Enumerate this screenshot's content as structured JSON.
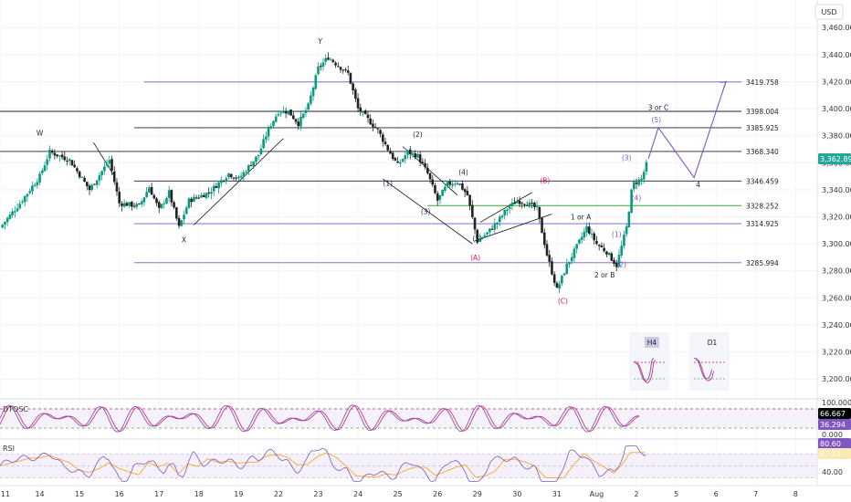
{
  "currency": "USD",
  "colors": {
    "up": "#089981",
    "down": "#222222",
    "purple": "#7E57C2",
    "navy": "#1f1f3a",
    "green": "#4CAF50",
    "red": "#d81b60",
    "teal": "#26a69a",
    "rsi": "#7E57C2",
    "rsi_ma": "#F9A825",
    "stoch_k": "#7E57C2",
    "stoch_d": "#d81b60"
  },
  "chart_data": {
    "type": "candlestick",
    "yaxis": {
      "min": 3190,
      "max": 3475,
      "ticks": [
        "3,460.000",
        "3,440.000",
        "3,420.000",
        "3,400.000",
        "3,380.000",
        "3,360.000",
        "3,340.000",
        "3,320.000",
        "3,300.000",
        "3,280.000",
        "3,260.000",
        "3,240.000",
        "3,220.000",
        "3,200.000"
      ],
      "tick_values": [
        3460,
        3440,
        3420,
        3400,
        3380,
        3360,
        3340,
        3320,
        3300,
        3280,
        3260,
        3240,
        3220,
        3200
      ]
    },
    "xaxis": {
      "labels": [
        "11",
        "14",
        "15",
        "16",
        "17",
        "18",
        "19",
        "22",
        "23",
        "24",
        "25",
        "26",
        "29",
        "30",
        "31",
        "Aug",
        "2",
        "5",
        "6",
        "7",
        "8"
      ],
      "positions": [
        0,
        4,
        8,
        12,
        16,
        20,
        24,
        28,
        32,
        36,
        40,
        44,
        48,
        52,
        56,
        60,
        64,
        68,
        72,
        76,
        80
      ]
    },
    "price_path": [
      [
        0,
        3312
      ],
      [
        2,
        3330
      ],
      [
        4,
        3350
      ],
      [
        5,
        3368
      ],
      [
        7,
        3362
      ],
      [
        9,
        3340
      ],
      [
        11,
        3362
      ],
      [
        12,
        3330
      ],
      [
        14,
        3328
      ],
      [
        15,
        3342
      ],
      [
        16,
        3325
      ],
      [
        17,
        3338
      ],
      [
        18,
        3312
      ],
      [
        19,
        3332
      ],
      [
        21,
        3338
      ],
      [
        23,
        3352
      ],
      [
        24,
        3348
      ],
      [
        26,
        3366
      ],
      [
        27,
        3385
      ],
      [
        28,
        3398
      ],
      [
        29,
        3398
      ],
      [
        30,
        3389
      ],
      [
        31,
        3402
      ],
      [
        32,
        3430
      ],
      [
        33,
        3438
      ],
      [
        34,
        3432
      ],
      [
        35,
        3426
      ],
      [
        36,
        3400
      ],
      [
        37,
        3392
      ],
      [
        38,
        3384
      ],
      [
        39,
        3370
      ],
      [
        40,
        3358
      ],
      [
        41,
        3368
      ],
      [
        42,
        3365
      ],
      [
        43,
        3352
      ],
      [
        44,
        3332
      ],
      [
        45,
        3344
      ],
      [
        46,
        3346
      ],
      [
        47,
        3336
      ],
      [
        48,
        3302
      ],
      [
        49,
        3308
      ],
      [
        50,
        3316
      ],
      [
        51,
        3326
      ],
      [
        52,
        3332
      ],
      [
        53,
        3330
      ],
      [
        54,
        3326
      ],
      [
        55,
        3292
      ],
      [
        56,
        3266
      ],
      [
        57,
        3284
      ],
      [
        58,
        3298
      ],
      [
        59,
        3312
      ],
      [
        60,
        3300
      ],
      [
        61,
        3294
      ],
      [
        62,
        3284
      ],
      [
        63,
        3312
      ],
      [
        63.6,
        3344
      ],
      [
        64.5,
        3348
      ],
      [
        65.2,
        3362.895
      ]
    ],
    "last_price": "3,362.895",
    "levels": [
      {
        "value": 3419.758,
        "label": "3419.758",
        "color": "purple",
        "start": 14.5
      },
      {
        "value": 3398.004,
        "label": "3398.004",
        "color": "navy",
        "start": 0
      },
      {
        "value": 3385.925,
        "label": "3385.925",
        "color": "navy",
        "start": 13.5
      },
      {
        "value": 3368.34,
        "label": "3368.340",
        "color": "navy",
        "start": 0
      },
      {
        "value": 3346.459,
        "label": "3346.459",
        "color": "navy",
        "start": 13.5
      },
      {
        "value": 3328.252,
        "label": "3328.252",
        "color": "green",
        "start": 43
      },
      {
        "value": 3314.925,
        "label": "3314.925",
        "color": "purple",
        "start": 13.5
      },
      {
        "value": 3285.994,
        "label": "3285.994",
        "color": "purple",
        "start": 13.5
      }
    ],
    "wave_labels": [
      {
        "text": "W",
        "x": 4,
        "y": 3380,
        "color": "navy"
      },
      {
        "text": "X",
        "x": 18.5,
        "y": 3301,
        "color": "navy"
      },
      {
        "text": "Y",
        "x": 32.2,
        "y": 3448,
        "color": "navy"
      },
      {
        "text": "(1)",
        "x": 39,
        "y": 3343,
        "color": "navy"
      },
      {
        "text": "(2)",
        "x": 42,
        "y": 3379,
        "color": "navy"
      },
      {
        "text": "(3)",
        "x": 42.8,
        "y": 3322,
        "color": "navy"
      },
      {
        "text": "(4)",
        "x": 46.6,
        "y": 3351,
        "color": "navy"
      },
      {
        "text": "(5)",
        "x": 48,
        "y": 3302,
        "color": "navy"
      },
      {
        "text": "(A)",
        "x": 47.8,
        "y": 3288,
        "color": "red"
      },
      {
        "text": "(B)",
        "x": 54.8,
        "y": 3345,
        "color": "red"
      },
      {
        "text": "(C)",
        "x": 56.6,
        "y": 3256,
        "color": "red"
      },
      {
        "text": "1 or A",
        "x": 58.4,
        "y": 3318,
        "color": "navy"
      },
      {
        "text": "2 or B",
        "x": 60.8,
        "y": 3275,
        "color": "navy"
      },
      {
        "text": "(1)",
        "x": 62,
        "y": 3305,
        "color": "purple"
      },
      {
        "text": "(2)",
        "x": 62.5,
        "y": 3283,
        "color": "purple"
      },
      {
        "text": "(3)",
        "x": 63,
        "y": 3362,
        "color": "purple"
      },
      {
        "text": "(4)",
        "x": 64,
        "y": 3332,
        "color": "purple"
      },
      {
        "text": "(5)",
        "x": 66,
        "y": 3390,
        "color": "purple"
      },
      {
        "text": "3 or C",
        "x": 66.2,
        "y": 3399,
        "color": "navy"
      },
      {
        "text": "4",
        "x": 70.2,
        "y": 3342,
        "color": "navy"
      }
    ],
    "projection": [
      [
        65.2,
        3362.895
      ],
      [
        66.2,
        3386
      ],
      [
        69.8,
        3349
      ],
      [
        73,
        3420
      ]
    ],
    "mini_panels": [
      {
        "label": "H4"
      },
      {
        "label": "D1"
      }
    ],
    "indicators": {
      "stoch": {
        "name": "DTOSC",
        "ticks": [
          "100.000",
          "0.000"
        ],
        "levels": [
          80,
          20
        ],
        "k_value": "66.667",
        "d_value": "36.294"
      },
      "rsi": {
        "name": "RSI",
        "ticks": [
          "40.00"
        ],
        "levels": [
          70,
          50,
          30
        ],
        "rsi_value": "80.60",
        "ma_value": "67.27"
      }
    }
  }
}
